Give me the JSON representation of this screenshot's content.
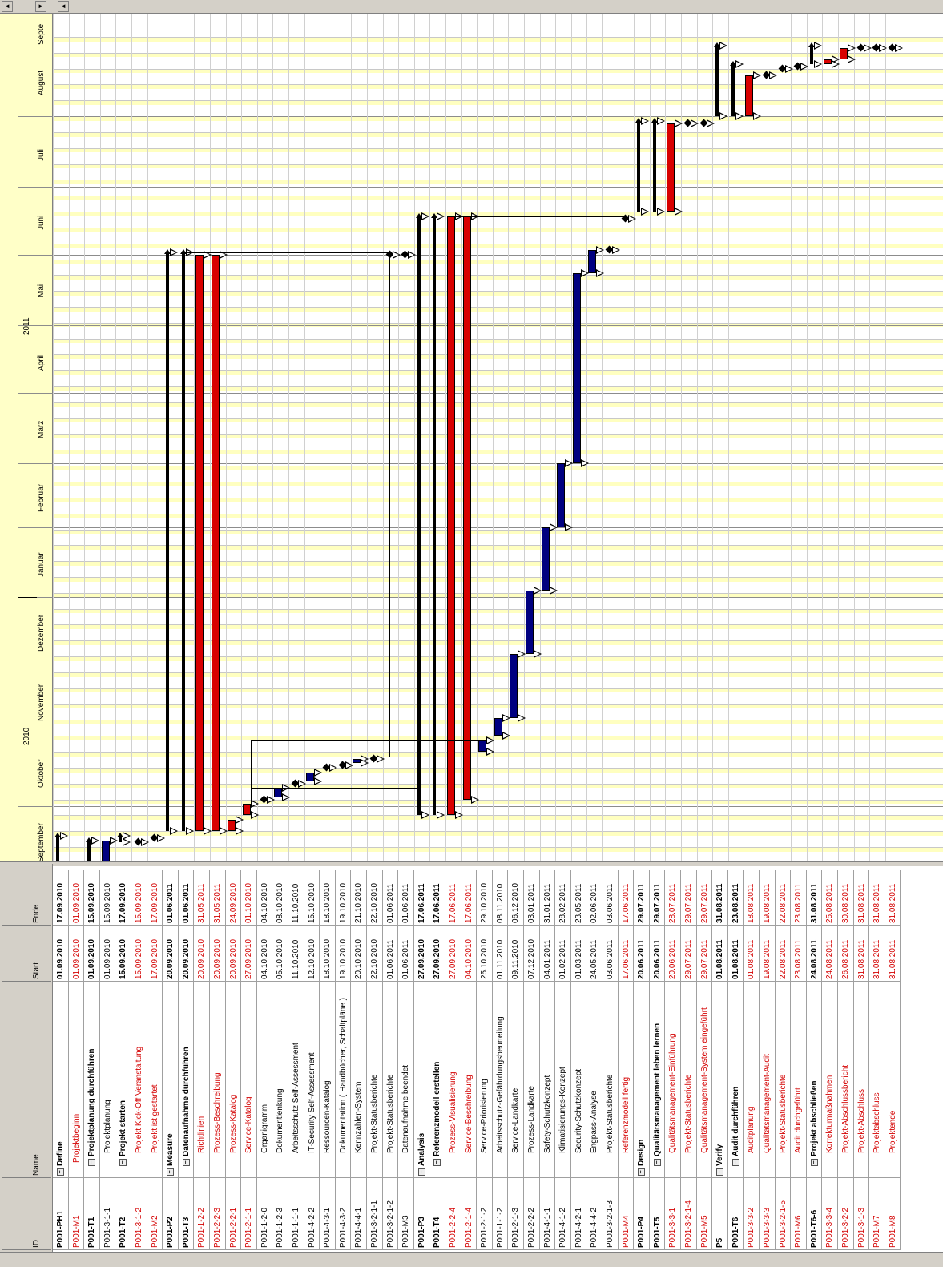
{
  "columns": {
    "id": "ID",
    "name": "Name",
    "start": "Start",
    "end": "Ende"
  },
  "timeline": {
    "years": [
      "2010",
      "2011"
    ],
    "months": [
      "September",
      "Oktober",
      "November",
      "Dezember",
      "Januar",
      "Februar",
      "März",
      "April",
      "Mai",
      "Juni",
      "Juli",
      "August",
      "Septe"
    ]
  },
  "rows": [
    {
      "id": "P001-PH1",
      "name": "Define",
      "start": "01.09.2010",
      "end": "17.09.2010",
      "type": "summary",
      "toggle": true,
      "indent": 0
    },
    {
      "id": "P001-M1",
      "name": "Projektbeginn",
      "start": "01.09.2010",
      "end": "01.09.2010",
      "type": "milestone",
      "indent": 1
    },
    {
      "id": "P001-T1",
      "name": "Projektplanung durchführen",
      "start": "01.09.2010",
      "end": "15.09.2010",
      "type": "summary",
      "toggle": true,
      "indent": 1
    },
    {
      "id": "P001-3-1-1",
      "name": "Projektplanung",
      "start": "01.09.2010",
      "end": "15.09.2010",
      "type": "task",
      "indent": 2
    },
    {
      "id": "P001-T2",
      "name": "Projekt starten",
      "start": "15.09.2010",
      "end": "17.09.2010",
      "type": "summary",
      "toggle": true,
      "indent": 1
    },
    {
      "id": "P001-3-1-2",
      "name": "Projekt Kick-Off Veranstaltung",
      "start": "15.09.2010",
      "end": "15.09.2010",
      "type": "milestone",
      "indent": 2
    },
    {
      "id": "P001-M2",
      "name": "Projekt ist gestartet",
      "start": "17.09.2010",
      "end": "17.09.2010",
      "type": "milestone",
      "indent": 2
    },
    {
      "id": "P001-P2",
      "name": "Measure",
      "start": "20.09.2010",
      "end": "01.06.2011",
      "type": "summary",
      "toggle": true,
      "indent": 0
    },
    {
      "id": "P001-T3",
      "name": "Datenaufnahme durchführen",
      "start": "20.09.2010",
      "end": "01.06.2011",
      "type": "summary",
      "toggle": true,
      "indent": 1
    },
    {
      "id": "P001-1-2-2",
      "name": "Richtlinien",
      "start": "20.09.2010",
      "end": "31.05.2011",
      "type": "milestone",
      "indent": 2
    },
    {
      "id": "P001-2-2-3",
      "name": "Prozess-Beschreibung",
      "start": "20.09.2010",
      "end": "31.05.2011",
      "type": "milestone",
      "indent": 2
    },
    {
      "id": "P001-2-2-1",
      "name": "Prozess-Katalog",
      "start": "20.09.2010",
      "end": "24.09.2010",
      "type": "milestone",
      "indent": 2
    },
    {
      "id": "P001-2-1-1",
      "name": "Service-Katalog",
      "start": "27.09.2010",
      "end": "01.10.2010",
      "type": "milestone",
      "indent": 2
    },
    {
      "id": "P001-1-2-0",
      "name": "Organigramm",
      "start": "04.10.2010",
      "end": "04.10.2010",
      "type": "task",
      "indent": 2
    },
    {
      "id": "P001-1-2-3",
      "name": "Dokumentlenkung",
      "start": "05.10.2010",
      "end": "08.10.2010",
      "type": "task",
      "indent": 2
    },
    {
      "id": "P001-1-1-1",
      "name": "Arbeitsschutz Self-Assessment",
      "start": "11.10.2010",
      "end": "11.10.2010",
      "type": "task",
      "indent": 2
    },
    {
      "id": "P001-4-2-2",
      "name": "IT-Security Self-Assessment",
      "start": "12.10.2010",
      "end": "15.10.2010",
      "type": "task",
      "indent": 2
    },
    {
      "id": "P001-4-3-1",
      "name": "Ressourcen-Katalog",
      "start": "18.10.2010",
      "end": "18.10.2010",
      "type": "task",
      "indent": 2
    },
    {
      "id": "P001-4-3-2",
      "name": "Dokumentation ( Handbücher, Schaltpläne )",
      "start": "19.10.2010",
      "end": "19.10.2010",
      "type": "task",
      "indent": 2
    },
    {
      "id": "P001-4-4-1",
      "name": "Kennzahlen-System",
      "start": "20.10.2010",
      "end": "21.10.2010",
      "type": "task",
      "indent": 2
    },
    {
      "id": "P001-3-2-1-1",
      "name": "Projekt-Statusberichte",
      "start": "22.10.2010",
      "end": "22.10.2010",
      "type": "task",
      "indent": 2
    },
    {
      "id": "P001-3-2-1-2",
      "name": "Projekt-Statusberichte",
      "start": "01.06.2011",
      "end": "01.06.2011",
      "type": "task",
      "indent": 2
    },
    {
      "id": "P001-M3",
      "name": "Datenaufnahme beendet",
      "start": "01.06.2011",
      "end": "01.06.2011",
      "type": "task",
      "indent": 2
    },
    {
      "id": "P001-P3",
      "name": "Analysis",
      "start": "27.09.2010",
      "end": "17.06.2011",
      "type": "summary",
      "toggle": true,
      "indent": 0
    },
    {
      "id": "P001-T4",
      "name": "Referenzmodell erstellen",
      "start": "27.09.2010",
      "end": "17.06.2011",
      "type": "summary",
      "toggle": true,
      "indent": 1
    },
    {
      "id": "P001-2-2-4",
      "name": "Prozess-Visualisierung",
      "start": "27.09.2010",
      "end": "17.06.2011",
      "type": "milestone",
      "indent": 2
    },
    {
      "id": "P001-2-1-4",
      "name": "Service-Beschreibung",
      "start": "04.10.2010",
      "end": "17.06.2011",
      "type": "milestone",
      "indent": 2
    },
    {
      "id": "P001-2-1-2",
      "name": "Service-Priorisierung",
      "start": "25.10.2010",
      "end": "29.10.2010",
      "type": "task",
      "indent": 2
    },
    {
      "id": "P001-1-1-2",
      "name": "Arbeitsschutz-Gefährdungsbeurteilung",
      "start": "01.11.2010",
      "end": "08.11.2010",
      "type": "task",
      "indent": 2
    },
    {
      "id": "P001-2-1-3",
      "name": "Service-Landkarte",
      "start": "09.11.2010",
      "end": "06.12.2010",
      "type": "task",
      "indent": 2
    },
    {
      "id": "P001-2-2-2",
      "name": "Prozess-Landkarte",
      "start": "07.12.2010",
      "end": "03.01.2011",
      "type": "task",
      "indent": 2
    },
    {
      "id": "P001-4-1-1",
      "name": "Safety-Schutzkonzept",
      "start": "04.01.2011",
      "end": "31.01.2011",
      "type": "task",
      "indent": 2
    },
    {
      "id": "P001-4-1-2",
      "name": "Klimatisierungs-Konzept",
      "start": "01.02.2011",
      "end": "28.02.2011",
      "type": "task",
      "indent": 2
    },
    {
      "id": "P001-4-2-1",
      "name": "Security-Schutzkonzept",
      "start": "01.03.2011",
      "end": "23.05.2011",
      "type": "task",
      "indent": 2
    },
    {
      "id": "P001-4-4-2",
      "name": "Engpass-Analyse",
      "start": "24.05.2011",
      "end": "02.06.2011",
      "type": "task",
      "indent": 2
    },
    {
      "id": "P001-3-2-1-3",
      "name": "Projekt-Statusberichte",
      "start": "03.06.2011",
      "end": "03.06.2011",
      "type": "task",
      "indent": 2
    },
    {
      "id": "P001-M4",
      "name": "Referenzmodell fertig",
      "start": "17.06.2011",
      "end": "17.06.2011",
      "type": "milestone",
      "indent": 2
    },
    {
      "id": "P001-P4",
      "name": "Design",
      "start": "20.06.2011",
      "end": "29.07.2011",
      "type": "summary",
      "toggle": true,
      "indent": 0
    },
    {
      "id": "P001-T5",
      "name": "Qualitätsmanagement leben lernen",
      "start": "20.06.2011",
      "end": "29.07.2011",
      "type": "summary",
      "toggle": true,
      "indent": 1
    },
    {
      "id": "P001-3-3-1",
      "name": "Qualitätsmanagement-Einführung",
      "start": "20.06.2011",
      "end": "28.07.2011",
      "type": "milestone",
      "indent": 2
    },
    {
      "id": "P001-3-2-1-4",
      "name": "Projekt-Statusberichte",
      "start": "29.07.2011",
      "end": "29.07.2011",
      "type": "milestone",
      "indent": 2
    },
    {
      "id": "P001-M5",
      "name": "Qualitätsmanagement-System eingeführt",
      "start": "29.07.2011",
      "end": "29.07.2011",
      "type": "milestone",
      "indent": 2
    },
    {
      "id": "P5",
      "name": "Verify",
      "start": "01.08.2011",
      "end": "31.08.2011",
      "type": "summary",
      "toggle": true,
      "indent": 0
    },
    {
      "id": "P001-T6",
      "name": "Audit durchführen",
      "start": "01.08.2011",
      "end": "23.08.2011",
      "type": "summary",
      "toggle": true,
      "indent": 1
    },
    {
      "id": "P001-3-3-2",
      "name": "Auditplanung",
      "start": "01.08.2011",
      "end": "18.08.2011",
      "type": "milestone",
      "indent": 2
    },
    {
      "id": "P001-3-3-3",
      "name": "Qualitätsmanagement-Audit",
      "start": "19.08.2011",
      "end": "19.08.2011",
      "type": "milestone",
      "indent": 2
    },
    {
      "id": "P001-3-2-1-5",
      "name": "Projekt-Statusberichte",
      "start": "22.08.2011",
      "end": "22.08.2011",
      "type": "milestone",
      "indent": 2
    },
    {
      "id": "P001-M6",
      "name": "Audit durchgeführt",
      "start": "23.08.2011",
      "end": "23.08.2011",
      "type": "milestone",
      "indent": 2
    },
    {
      "id": "P001-T6-6",
      "name": "Projekt abschließen",
      "start": "24.08.2011",
      "end": "31.08.2011",
      "type": "summary",
      "toggle": true,
      "indent": 1
    },
    {
      "id": "P001-3-3-4",
      "name": "Korrekturmaßnahmen",
      "start": "24.08.2011",
      "end": "25.08.2011",
      "type": "milestone",
      "indent": 2
    },
    {
      "id": "P001-3-2-2",
      "name": "Projekt-Abschlussbericht",
      "start": "26.08.2011",
      "end": "30.08.2011",
      "type": "milestone",
      "indent": 2
    },
    {
      "id": "P001-3-1-3",
      "name": "Projekt-Abschluss",
      "start": "31.08.2011",
      "end": "31.08.2011",
      "type": "milestone",
      "indent": 2
    },
    {
      "id": "P001-M7",
      "name": "Projektabschluss",
      "start": "31.08.2011",
      "end": "31.08.2011",
      "type": "milestone",
      "indent": 2
    },
    {
      "id": "P001-M8",
      "name": "Projektende",
      "start": "31.08.2011",
      "end": "31.08.2011",
      "type": "milestone",
      "indent": 2
    }
  ],
  "colors": {
    "critical": "#d80000",
    "normal": "#000080",
    "summary": "#000000",
    "weekend": "#ffffc0",
    "red_text": "#d40000"
  }
}
